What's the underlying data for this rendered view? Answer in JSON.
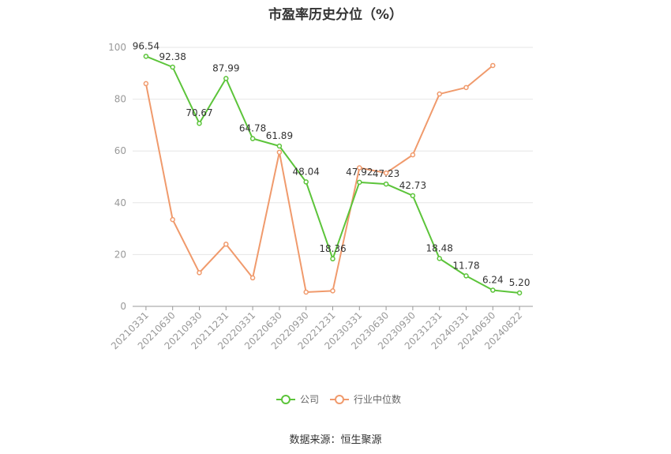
{
  "chart_data": {
    "type": "line",
    "title": "市盈率历史分位（%）",
    "source": "数据来源：恒生聚源",
    "x": [
      "20210331",
      "20210630",
      "20210930",
      "20211231",
      "20220331",
      "20220630",
      "20220930",
      "20221231",
      "20230331",
      "20230630",
      "20230930",
      "20231231",
      "20240331",
      "20240630",
      "20240822"
    ],
    "ylim": [
      0,
      100
    ],
    "yticks": [
      0,
      20,
      40,
      60,
      80,
      100
    ],
    "grid": true,
    "legend_position": "bottom",
    "series": [
      {
        "name": "公司",
        "color": "#5cc43a",
        "values": [
          96.54,
          92.38,
          70.67,
          87.99,
          64.78,
          61.89,
          48.04,
          18.36,
          47.92,
          47.23,
          42.73,
          18.48,
          11.78,
          6.24,
          5.2
        ],
        "labels": [
          "96.54",
          "92.38",
          "70.67",
          "87.99",
          "64.78",
          "61.89",
          "48.04",
          "18.36",
          "47.92",
          "47.23",
          "42.73",
          "18.48",
          "11.78",
          "6.24",
          "5.20"
        ]
      },
      {
        "name": "行业中位数",
        "color": "#f09a6c",
        "values": [
          86,
          33.5,
          13,
          24,
          11,
          59.5,
          5.5,
          6,
          53.5,
          51.5,
          58.5,
          82,
          84.5,
          93,
          null
        ]
      }
    ]
  }
}
